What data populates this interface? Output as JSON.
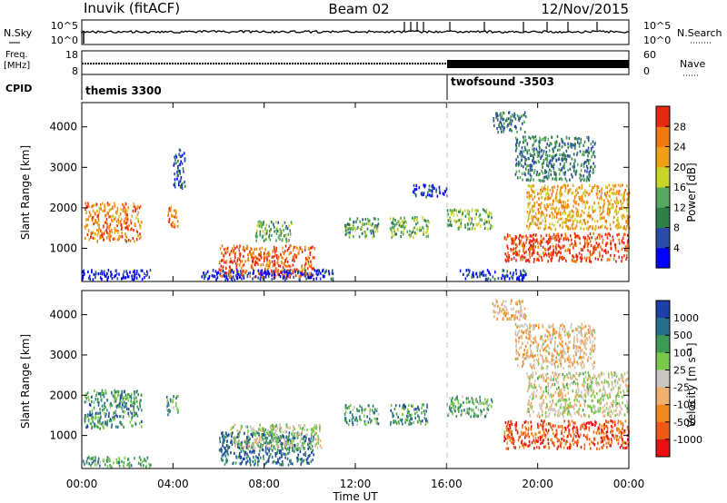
{
  "header": {
    "station": "Inuvik (fitACF)",
    "beam": "Beam 02",
    "date": "12/Nov/2015"
  },
  "strips": {
    "nsky": {
      "label": "N.Sky",
      "right_label": "N.Search",
      "left_ticks": [
        "10^5",
        "10^0"
      ],
      "right_ticks": [
        "10^5",
        "10^0"
      ]
    },
    "freq": {
      "label": "Freq.",
      "unit": "[MHz]",
      "left_ticks": [
        "18",
        "8"
      ],
      "right_label": "Nave",
      "right_ticks": [
        "60",
        "0"
      ]
    },
    "cpid": {
      "label": "CPID",
      "programs": [
        {
          "name": "themis 3300",
          "start_hour": 0
        },
        {
          "name": "twofsound -3503",
          "start_hour": 16
        }
      ]
    }
  },
  "chart_data": [
    {
      "type": "heatmap",
      "name": "power",
      "ylabel": "Slant Range [km]",
      "xlabel": "",
      "xlim": [
        0,
        24
      ],
      "ylim": [
        180,
        4600
      ],
      "yticks": [
        "1000",
        "2000",
        "3000",
        "4000"
      ],
      "colorbar": {
        "label": "Power [dB]",
        "ticks": [
          "4",
          "8",
          "12",
          "16",
          "20",
          "24",
          "28"
        ],
        "colors": [
          "#0000ff",
          "#2a4aa8",
          "#2f7f4a",
          "#55a860",
          "#c8d42a",
          "#f0a018",
          "#f07a10",
          "#e82810"
        ]
      },
      "scatter_regions": [
        {
          "t": [
            0.1,
            2.6
          ],
          "r": [
            1200,
            2150
          ],
          "level": 0.78
        },
        {
          "t": [
            0.0,
            3.0
          ],
          "r": [
            250,
            500
          ],
          "level": 0.05
        },
        {
          "t": [
            3.7,
            4.2
          ],
          "r": [
            1550,
            2050
          ],
          "level": 0.8
        },
        {
          "t": [
            4.0,
            4.5
          ],
          "r": [
            2500,
            3500
          ],
          "level": 0.2
        },
        {
          "t": [
            6.0,
            10.2
          ],
          "r": [
            300,
            1100
          ],
          "level": 0.85
        },
        {
          "t": [
            5.2,
            11.0
          ],
          "r": [
            250,
            500
          ],
          "level": 0.1
        },
        {
          "t": [
            7.6,
            9.2
          ],
          "r": [
            1200,
            1700
          ],
          "level": 0.4
        },
        {
          "t": [
            11.5,
            13.0
          ],
          "r": [
            1300,
            1800
          ],
          "level": 0.4
        },
        {
          "t": [
            13.5,
            15.2
          ],
          "r": [
            1300,
            1800
          ],
          "level": 0.45
        },
        {
          "t": [
            14.5,
            16.0
          ],
          "r": [
            2300,
            2600
          ],
          "level": 0.15
        },
        {
          "t": [
            16.0,
            18.0
          ],
          "r": [
            1500,
            2000
          ],
          "level": 0.45
        },
        {
          "t": [
            16.5,
            19.5
          ],
          "r": [
            250,
            500
          ],
          "level": 0.15
        },
        {
          "t": [
            18.5,
            24.0
          ],
          "r": [
            700,
            1400
          ],
          "level": 0.92
        },
        {
          "t": [
            19.5,
            24.0
          ],
          "r": [
            1500,
            2600
          ],
          "level": 0.7
        },
        {
          "t": [
            19.0,
            22.5
          ],
          "r": [
            2700,
            3800
          ],
          "level": 0.3
        },
        {
          "t": [
            18.0,
            19.5
          ],
          "r": [
            3900,
            4400
          ],
          "level": 0.3
        }
      ]
    },
    {
      "type": "heatmap",
      "name": "velocity",
      "ylabel": "Slant Range [km]",
      "xlabel": "Time UT",
      "xlim": [
        0,
        24
      ],
      "ylim": [
        180,
        4600
      ],
      "yticks": [
        "1000",
        "2000",
        "3000",
        "4000"
      ],
      "xticks": [
        "00:00",
        "04:00",
        "08:00",
        "12:00",
        "16:00",
        "20:00",
        "00:00"
      ],
      "colorbar": {
        "label": "Velocity [m s⁻¹]",
        "ticks": [
          "1000",
          "500",
          "100",
          "25",
          "-25",
          "-100",
          "-500",
          "-1000"
        ],
        "colors": [
          "#1f3fa8",
          "#2a6f8a",
          "#3d9a55",
          "#7ac84a",
          "#c8c8c0",
          "#f0b070",
          "#f08a20",
          "#f05a18",
          "#e81010"
        ]
      },
      "scatter_regions": [
        {
          "t": [
            0.1,
            2.6
          ],
          "r": [
            1200,
            2150
          ],
          "level": 0.25
        },
        {
          "t": [
            0.0,
            3.0
          ],
          "r": [
            250,
            500
          ],
          "level": 0.3
        },
        {
          "t": [
            3.7,
            4.2
          ],
          "r": [
            1550,
            2050
          ],
          "level": 0.3
        },
        {
          "t": [
            6.0,
            10.2
          ],
          "r": [
            300,
            1100
          ],
          "level": 0.15
        },
        {
          "t": [
            6.5,
            10.5
          ],
          "r": [
            700,
            1300
          ],
          "level": 0.45
        },
        {
          "t": [
            11.5,
            13.0
          ],
          "r": [
            1300,
            1800
          ],
          "level": 0.3
        },
        {
          "t": [
            13.5,
            15.2
          ],
          "r": [
            1300,
            1800
          ],
          "level": 0.25
        },
        {
          "t": [
            16.0,
            18.0
          ],
          "r": [
            1500,
            2000
          ],
          "level": 0.35
        },
        {
          "t": [
            18.5,
            24.0
          ],
          "r": [
            700,
            1400
          ],
          "level": 0.85
        },
        {
          "t": [
            19.5,
            24.0
          ],
          "r": [
            1500,
            2600
          ],
          "level": 0.5
        },
        {
          "t": [
            19.0,
            22.5
          ],
          "r": [
            2700,
            3800
          ],
          "level": 0.6
        },
        {
          "t": [
            18.0,
            19.5
          ],
          "r": [
            3900,
            4400
          ],
          "level": 0.6
        }
      ]
    }
  ]
}
